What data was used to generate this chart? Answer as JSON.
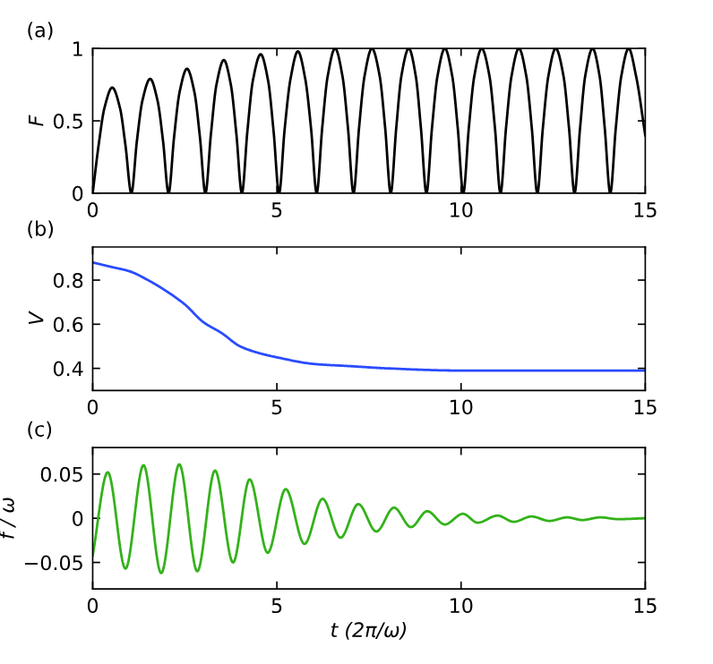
{
  "chart_data": [
    {
      "type": "line",
      "ylabel": "F",
      "annotations": [
        "(a)"
      ],
      "xlim": [
        0,
        15
      ],
      "ylim": [
        0,
        1
      ],
      "xticks": [
        0,
        5,
        10,
        15
      ],
      "yticks": [
        0,
        0.5,
        1
      ],
      "grid": false,
      "legend": false,
      "series": [
        {
          "color": "#000000",
          "x": [
            0,
            0.16,
            0.32,
            0.53,
            0.74,
            0.89,
            1.05,
            1.2,
            1.35,
            1.56,
            1.76,
            1.91,
            2.06,
            2.21,
            2.36,
            2.56,
            2.76,
            2.91,
            3.06,
            3.21,
            3.36,
            3.56,
            3.75,
            3.9,
            4.05,
            4.2,
            4.35,
            4.56,
            4.76,
            4.91,
            5.06,
            5.21,
            5.37,
            5.57,
            5.77,
            5.93,
            6.08,
            6.23,
            6.38,
            6.58,
            6.78,
            6.93,
            7.08,
            7.23,
            7.38,
            7.58,
            7.79,
            7.94,
            8.09,
            8.24,
            8.38,
            8.58,
            8.77,
            8.91,
            9.06,
            9.21,
            9.36,
            9.56,
            9.76,
            9.91,
            10.06,
            10.21,
            10.36,
            10.56,
            10.77,
            10.92,
            11.07,
            11.22,
            11.37,
            11.57,
            11.77,
            11.92,
            12.07,
            12.22,
            12.37,
            12.57,
            12.78,
            12.93,
            13.08,
            13.23,
            13.37,
            13.57,
            13.76,
            13.9,
            14.05,
            14.2,
            14.35,
            14.55,
            14.75,
            15
          ],
          "values": [
            0,
            0.33,
            0.59,
            0.73,
            0.59,
            0.33,
            0,
            0.36,
            0.64,
            0.79,
            0.64,
            0.36,
            0,
            0.39,
            0.7,
            0.86,
            0.7,
            0.39,
            0,
            0.41,
            0.75,
            0.92,
            0.75,
            0.41,
            0,
            0.43,
            0.78,
            0.96,
            0.78,
            0.43,
            0,
            0.44,
            0.79,
            0.98,
            0.79,
            0.44,
            0,
            0.45,
            0.81,
            1,
            0.81,
            0.45,
            0,
            0.45,
            0.81,
            1,
            0.81,
            0.45,
            0,
            0.45,
            0.81,
            1,
            0.81,
            0.45,
            0,
            0.45,
            0.81,
            1,
            0.81,
            0.45,
            0,
            0.45,
            0.81,
            1,
            0.81,
            0.45,
            0,
            0.45,
            0.81,
            1,
            0.81,
            0.45,
            0,
            0.45,
            0.81,
            1,
            0.81,
            0.45,
            0,
            0.45,
            0.81,
            1,
            0.81,
            0.45,
            0,
            0.45,
            0.81,
            1,
            0.81,
            0.4
          ]
        }
      ]
    },
    {
      "type": "line",
      "ylabel": "V",
      "annotations": [
        "(b)"
      ],
      "xlim": [
        0,
        15
      ],
      "ylim": [
        0.3,
        0.95
      ],
      "xticks": [
        0,
        5,
        10,
        15
      ],
      "yticks": [
        0.4,
        0.6,
        0.8
      ],
      "grid": false,
      "legend": false,
      "series": [
        {
          "color": "#2a4bff",
          "x": [
            0,
            0.5,
            1,
            1.5,
            2,
            2.5,
            3,
            3.5,
            4,
            4.5,
            5,
            6,
            7,
            8,
            10,
            15
          ],
          "values": [
            0.88,
            0.86,
            0.84,
            0.8,
            0.75,
            0.69,
            0.61,
            0.56,
            0.5,
            0.47,
            0.45,
            0.42,
            0.41,
            0.4,
            0.39,
            0.39
          ]
        }
      ]
    },
    {
      "type": "line",
      "ylabel": "f / ω",
      "xlabel": "t (2π/ω)",
      "annotations": [
        "(c)"
      ],
      "xlim": [
        0,
        15
      ],
      "ylim": [
        -0.08,
        0.08
      ],
      "xticks": [
        0,
        5,
        10,
        15
      ],
      "yticks": [
        {
          "value": -0.05,
          "label": "−0.05"
        },
        0,
        0.05
      ],
      "grid": false,
      "legend": false,
      "series": [
        {
          "color": "#33b21a",
          "x": [
            0,
            0.41,
            0.89,
            1.38,
            1.86,
            2.35,
            2.84,
            3.32,
            3.81,
            4.26,
            4.75,
            5.24,
            5.75,
            6.24,
            6.73,
            7.21,
            7.7,
            8.18,
            8.64,
            9.08,
            9.56,
            10.05,
            10.45,
            10.99,
            11.43,
            11.91,
            12.4,
            12.88,
            13.29,
            13.78,
            14.26,
            15
          ],
          "values": [
            -0.042,
            0.052,
            -0.057,
            0.06,
            -0.062,
            0.061,
            -0.06,
            0.054,
            -0.05,
            0.044,
            -0.039,
            0.033,
            -0.029,
            0.022,
            -0.022,
            0.016,
            -0.015,
            0.012,
            -0.01,
            0.008,
            -0.007,
            0.005,
            -0.005,
            0.003,
            -0.004,
            0.002,
            -0.003,
            0.001,
            -0.002,
            0.001,
            -0.001,
            0
          ]
        }
      ]
    }
  ]
}
